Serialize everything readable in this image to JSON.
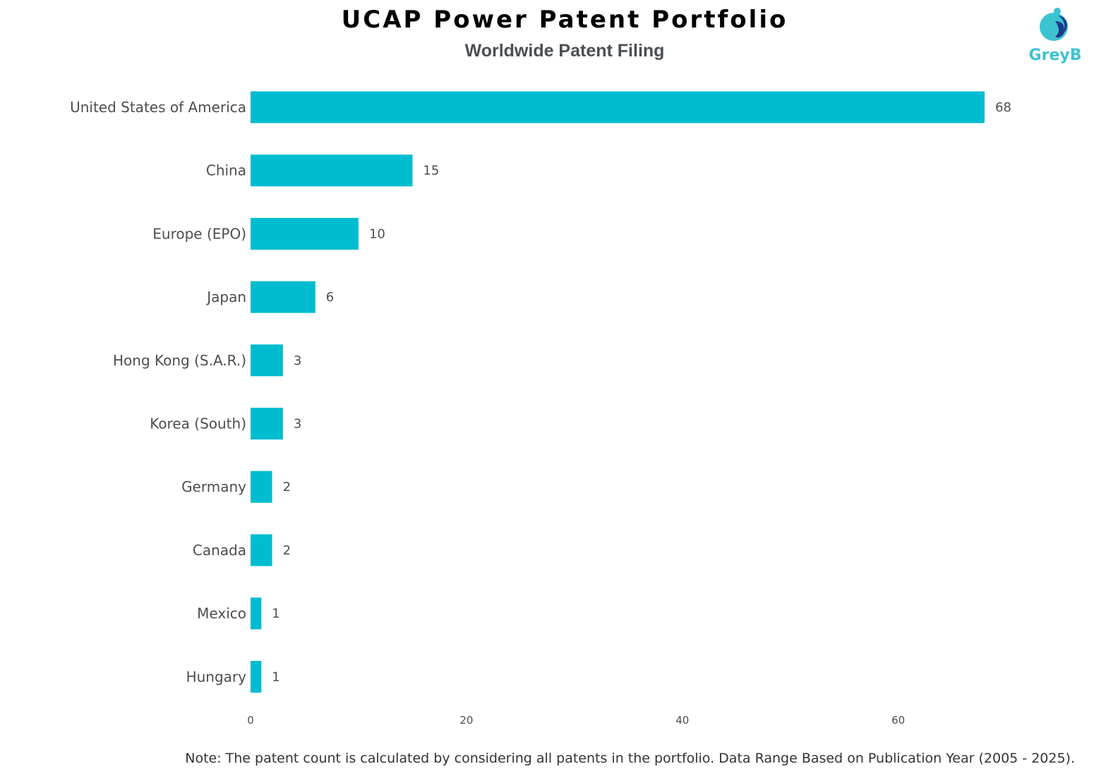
{
  "chart_data": {
    "type": "bar",
    "orientation": "horizontal",
    "title": "UCAP Power Patent Portfolio",
    "subtitle": "Worldwide Patent Filing",
    "categories": [
      "United States of America",
      "China",
      "Europe (EPO)",
      "Japan",
      "Hong Kong (S.A.R.)",
      "Korea (South)",
      "Germany",
      "Canada",
      "Mexico",
      "Hungary"
    ],
    "values": [
      68,
      15,
      10,
      6,
      3,
      3,
      2,
      2,
      1,
      1
    ],
    "xticks": [
      0,
      20,
      40,
      60
    ],
    "xlim": [
      0,
      76.5
    ],
    "xlabel": "",
    "ylabel": "",
    "grid": false,
    "bar_color": "#00bcd0"
  },
  "logo": {
    "text": "GreyB",
    "colors": [
      "#3cc3d2",
      "#1d3a8a"
    ]
  },
  "note": "Note: The patent count is calculated by considering all patents in the portfolio. Data Range Based on Publication Year (2005 - 2025)."
}
